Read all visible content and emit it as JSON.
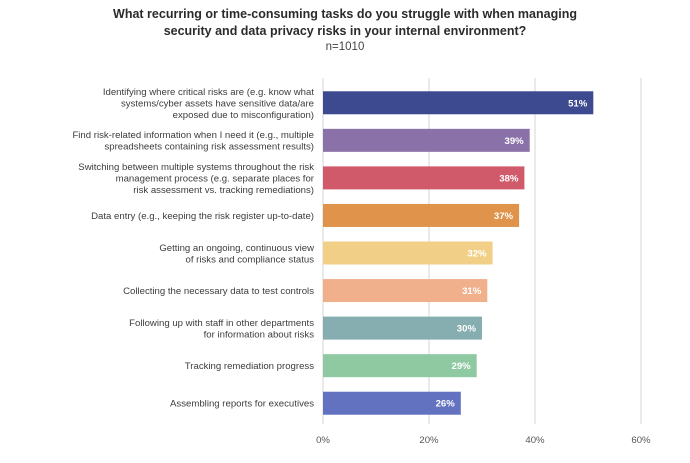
{
  "chart_data": {
    "type": "bar",
    "orientation": "horizontal",
    "title_lines": [
      "What recurring or time-consuming tasks do you struggle with when managing",
      "security and data privacy risks in your internal environment?"
    ],
    "subtitle": "n=1010",
    "categories": [
      [
        "Identifying where critical risks are (e.g. know what",
        "systems/cyber assets have sensitive data/are",
        "exposed due to misconfiguration)"
      ],
      [
        "Find risk-related information when I need it (e.g., multiple",
        "spreadsheets containing risk assessment results)"
      ],
      [
        "Switching between multiple systems throughout the risk",
        "management process (e.g. separate places for",
        "risk assessment vs. tracking remediations)"
      ],
      [
        "Data entry (e.g., keeping the risk register up-to-date)"
      ],
      [
        "Getting an ongoing, continuous view",
        "of risks and compliance status"
      ],
      [
        "Collecting the necessary data to test controls"
      ],
      [
        "Following up with staff in other departments",
        "for information about risks"
      ],
      [
        "Tracking remediation progress"
      ],
      [
        "Assembling reports for executives"
      ]
    ],
    "values": [
      51,
      39,
      38,
      37,
      32,
      31,
      30,
      29,
      26
    ],
    "value_labels": [
      "51%",
      "39%",
      "38%",
      "37%",
      "32%",
      "31%",
      "30%",
      "29%",
      "26%"
    ],
    "colors": [
      "#3d4a8f",
      "#8a72a8",
      "#d15a6a",
      "#e0934a",
      "#f2cf86",
      "#f0b08c",
      "#86aeb0",
      "#8ec9a2",
      "#6272c0"
    ],
    "xlim": [
      0,
      60
    ],
    "x_ticks": [
      0,
      20,
      40,
      60
    ],
    "x_tick_labels": [
      "0%",
      "20%",
      "40%",
      "60%"
    ],
    "grid": true
  }
}
